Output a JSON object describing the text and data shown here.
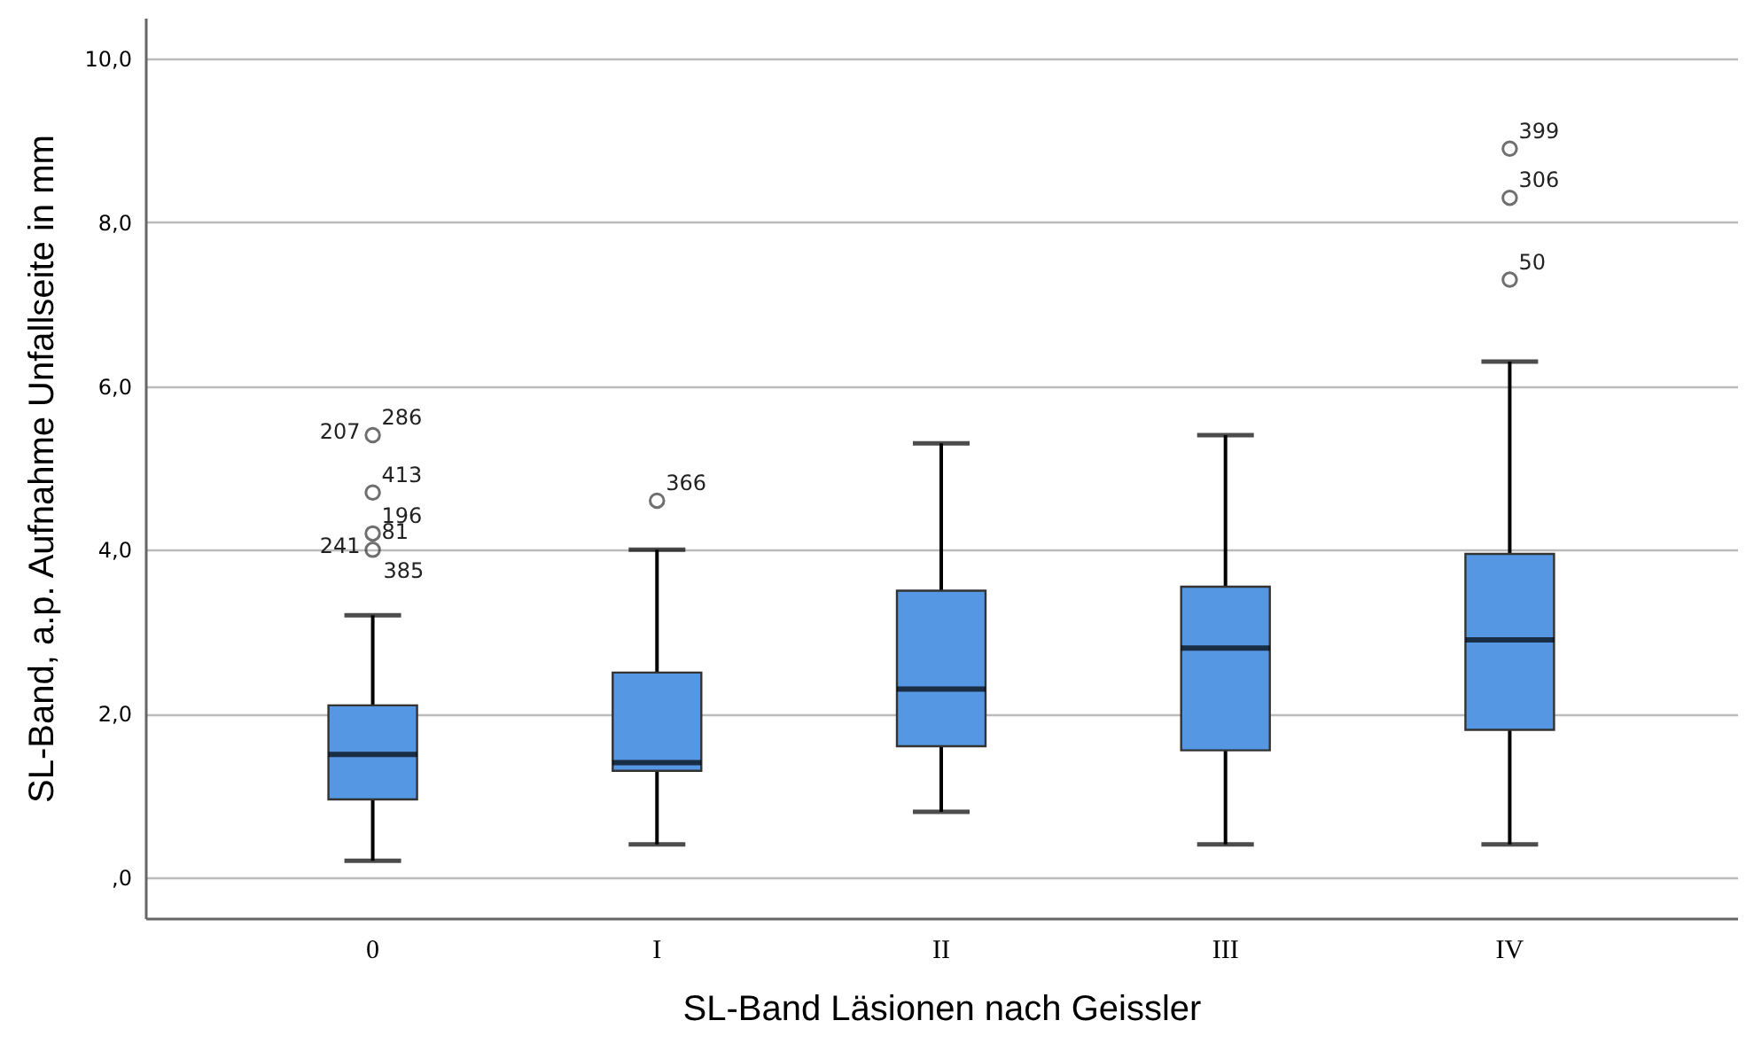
{
  "chart_data": {
    "type": "box",
    "xlabel": "SL-Band Läsionen nach Geissler",
    "ylabel": "SL-Band, a.p. Aufnahme Unfallseite in mm",
    "categories": [
      "0",
      "I",
      "II",
      "III",
      "IV"
    ],
    "series": [
      {
        "color": "#5597e3",
        "boxes": [
          {
            "low": 0.2,
            "q1": 0.95,
            "median": 1.5,
            "q3": 2.1,
            "high": 3.2
          },
          {
            "low": 0.4,
            "q1": 1.3,
            "median": 1.4,
            "q3": 2.5,
            "high": 4.0
          },
          {
            "low": 0.8,
            "q1": 1.6,
            "median": 2.3,
            "q3": 3.5,
            "high": 5.3
          },
          {
            "low": 0.4,
            "q1": 1.55,
            "median": 2.8,
            "q3": 3.55,
            "high": 5.4
          },
          {
            "low": 0.4,
            "q1": 1.8,
            "median": 2.9,
            "q3": 3.95,
            "high": 6.3
          }
        ]
      },
      {
        "type": "scatter",
        "color": "#333333",
        "x": [
          "0",
          "0",
          "0",
          "0",
          "I",
          "IV",
          "IV",
          "IV"
        ],
        "values": [
          5.4,
          4.7,
          4.2,
          4.0,
          4.6,
          8.9,
          8.3,
          7.3
        ]
      }
    ],
    "ylim": [
      -0.5,
      10.5
    ],
    "yticks": [
      {
        "value": 0,
        "label": ",0"
      },
      {
        "value": 2,
        "label": "2,0"
      },
      {
        "value": 4,
        "label": "4,0"
      },
      {
        "value": 6,
        "label": "6,0"
      },
      {
        "value": 8,
        "label": "8,0"
      },
      {
        "value": 10,
        "label": "10,0"
      }
    ],
    "grid": "y",
    "marker": "circle",
    "annotations": [
      {
        "text": "286",
        "x": "0",
        "y": 5.4
      },
      {
        "text": "207",
        "x": "0",
        "y": 5.4
      },
      {
        "text": "413",
        "x": "0",
        "y": 4.7
      },
      {
        "text": "196",
        "x": "0",
        "y": 4.2
      },
      {
        "text": "81",
        "x": "0",
        "y": 4.0
      },
      {
        "text": "241",
        "x": "0",
        "y": 4.0
      },
      {
        "text": "385",
        "x": "0",
        "y": 4.0
      },
      {
        "text": "366",
        "x": "I",
        "y": 4.6
      },
      {
        "text": "399",
        "x": "IV",
        "y": 8.9
      },
      {
        "text": "306",
        "x": "IV",
        "y": 8.3
      },
      {
        "text": "50",
        "x": "IV",
        "y": 7.3
      }
    ]
  }
}
